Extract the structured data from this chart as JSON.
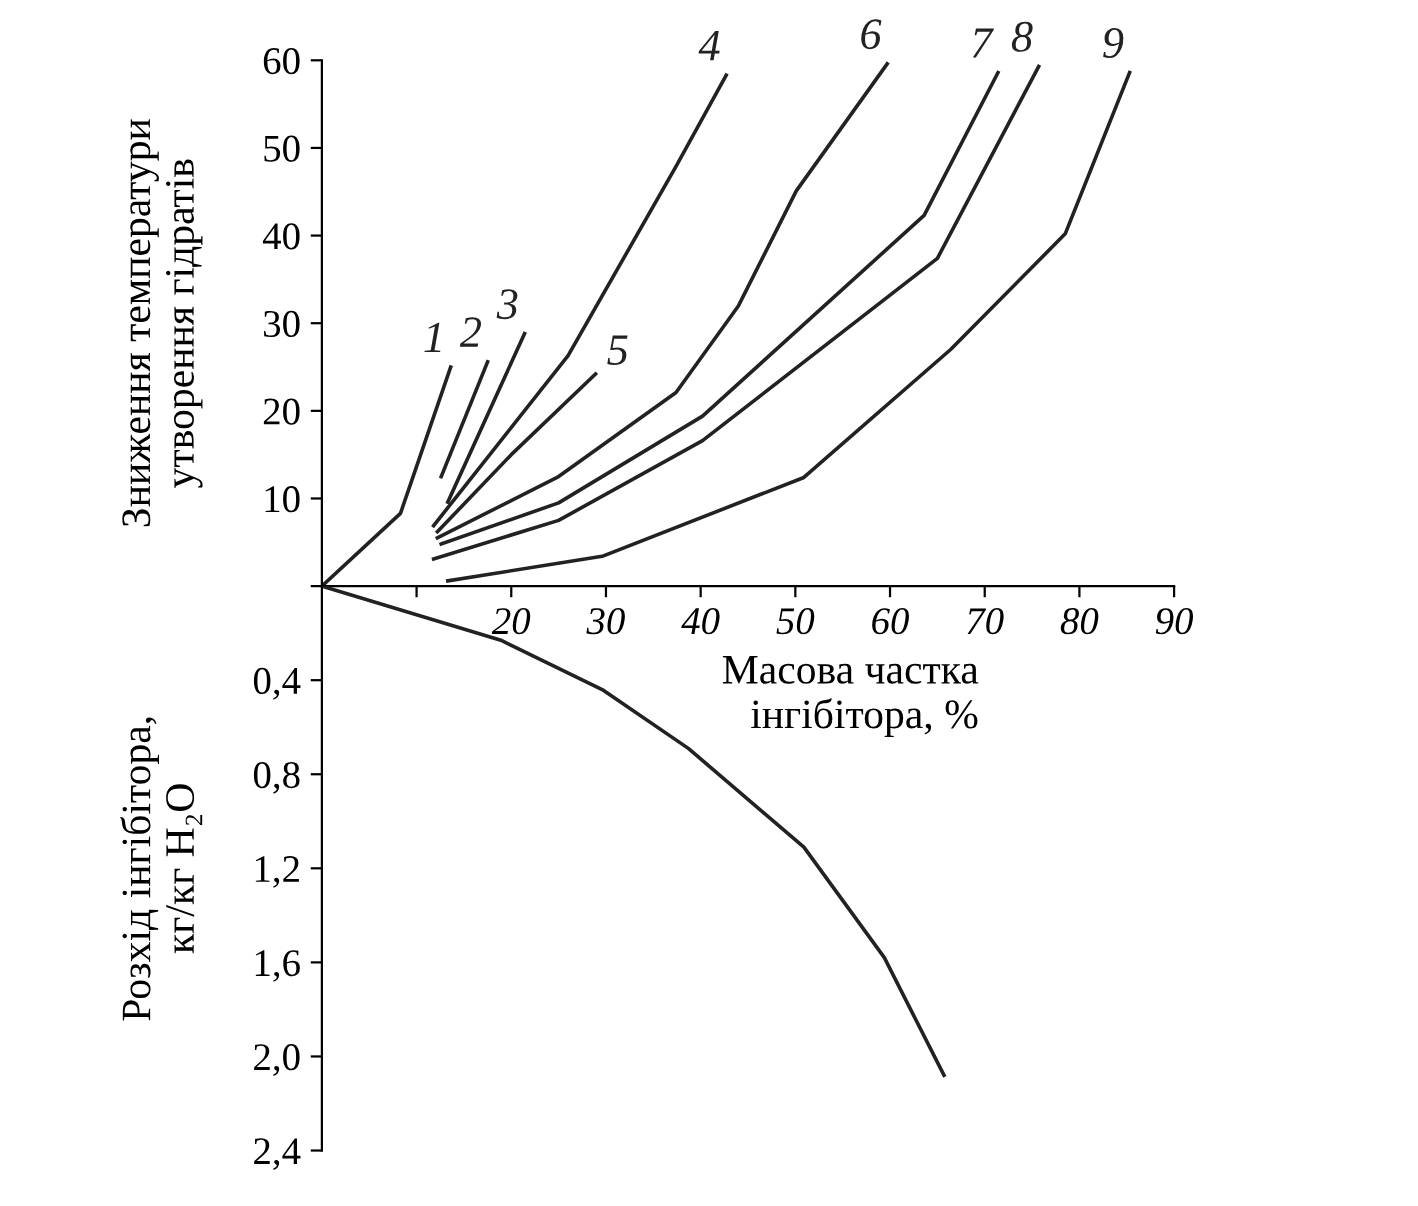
{
  "chart_data": [
    {
      "type": "line",
      "ylabel": "Зниження температури\nутворення гідратів",
      "xlabel": "Масова частка\nінгібітора, %",
      "xlim": [
        0,
        90
      ],
      "xticks": [
        {
          "value": 10,
          "label": null
        },
        20,
        30,
        40,
        50,
        60,
        70,
        80,
        90
      ],
      "ylim": [
        0,
        60
      ],
      "yticks": [
        {
          "value": 0,
          "label": null
        },
        10,
        20,
        30,
        40,
        50,
        60
      ],
      "grid": false,
      "legend": false,
      "marker": "none",
      "line_style": "solid",
      "series": [
        {
          "name": "1",
          "color": "#222222",
          "x": [
            0,
            8.3,
            13.6
          ],
          "values": [
            0,
            8.3,
            25.0
          ]
        },
        {
          "name": "2",
          "color": "#222222",
          "x": [
            12.6,
            17.5
          ],
          "values": [
            12.5,
            25.6
          ]
        },
        {
          "name": "3",
          "color": "#222222",
          "x": [
            13.3,
            21.4
          ],
          "values": [
            9.6,
            28.8
          ]
        },
        {
          "name": "4",
          "color": "#222222",
          "x": [
            11.8,
            26.0,
            37.4,
            42.7
          ],
          "values": [
            6.9,
            26.3,
            47.9,
            58.3
          ]
        },
        {
          "name": "5",
          "color": "#222222",
          "x": [
            12.2,
            20.0,
            28.9
          ],
          "values": [
            6.2,
            15.0,
            24.2
          ]
        },
        {
          "name": "6",
          "color": "#222222",
          "x": [
            12.2,
            25.0,
            37.4,
            44.0,
            50.1,
            59.7
          ],
          "values": [
            5.5,
            12.5,
            22.1,
            32.0,
            45.1,
            59.6
          ]
        },
        {
          "name": "7",
          "color": "#222222",
          "x": [
            12.6,
            25.0,
            40.2,
            63.6,
            71.4
          ],
          "values": [
            4.8,
            9.5,
            19.4,
            42.3,
            58.6
          ]
        },
        {
          "name": "8",
          "color": "#222222",
          "x": [
            11.8,
            25.0,
            40.2,
            65.0,
            75.7
          ],
          "values": [
            3.1,
            7.5,
            16.6,
            37.4,
            59.3
          ]
        },
        {
          "name": "9",
          "color": "#222222",
          "x": [
            13.3,
            29.6,
            50.9,
            66.4,
            78.5,
            85.3
          ],
          "values": [
            0.6,
            3.4,
            12.4,
            27.0,
            40.2,
            58.6
          ]
        }
      ]
    },
    {
      "type": "line",
      "ylabel": "Розхід інгібітора,\nкг/кг H₂O",
      "xlim": [
        0,
        90
      ],
      "ylim": [
        2.4,
        0
      ],
      "yticks": [
        {
          "value": 0.4,
          "label": "0,4"
        },
        {
          "value": 0.8,
          "label": "0,8"
        },
        {
          "value": 1.2,
          "label": "1,2"
        },
        {
          "value": 1.6,
          "label": "1,6"
        },
        {
          "value": 2.0,
          "label": "2,0"
        },
        {
          "value": 2.4,
          "label": "2,4"
        }
      ],
      "tick_labels": "y",
      "grid": false,
      "legend": false,
      "marker": "none",
      "line_style": "solid",
      "series": [
        {
          "color": "#222222",
          "x": [
            0,
            18.9,
            29.6,
            38.7,
            50.9,
            59.4,
            65.7
          ],
          "values": [
            0,
            0.23,
            0.44,
            0.69,
            1.11,
            1.58,
            2.08
          ]
        }
      ]
    }
  ]
}
